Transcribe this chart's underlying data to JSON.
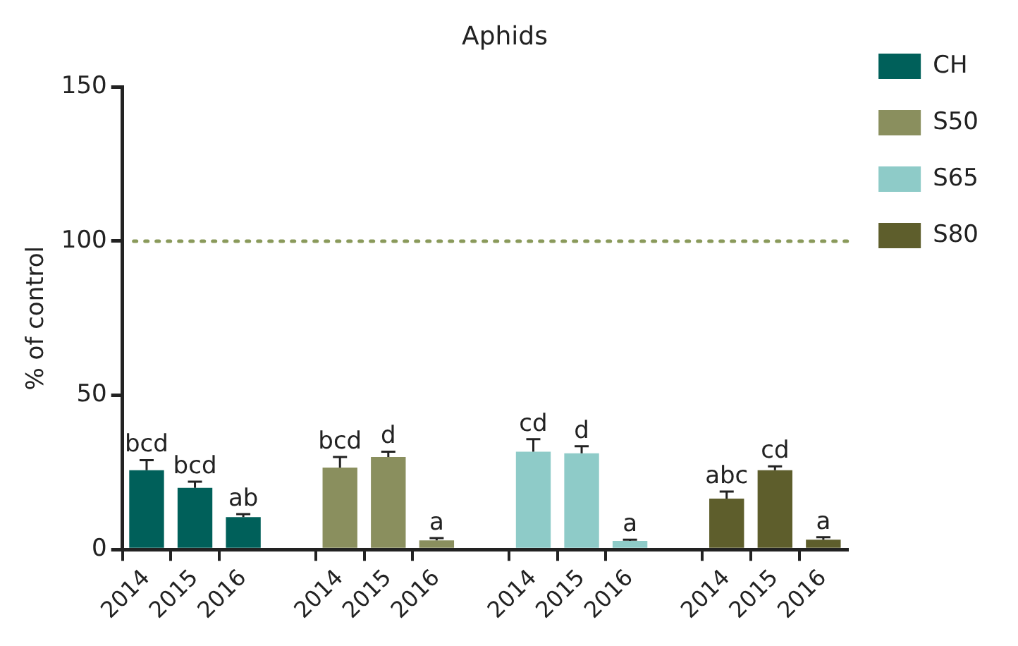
{
  "chart_data": {
    "type": "bar",
    "title": "Aphids",
    "ylabel": "% of control",
    "categories": [
      "2014",
      "2015",
      "2016",
      null,
      "2014",
      "2015",
      "2016",
      null,
      "2014",
      "2015",
      "2016",
      null,
      "2014",
      "2015",
      "2016"
    ],
    "series": [
      {
        "name": "CH",
        "color": "#00605a",
        "values": [
          25.7,
          20,
          10.5,
          null,
          null,
          null,
          null,
          null,
          null,
          null,
          null,
          null,
          null,
          null,
          null
        ],
        "errors": [
          [
            25.7,
            29
          ],
          [
            20,
            22
          ],
          [
            10.5,
            11.5
          ],
          null,
          null,
          null,
          null,
          null,
          null,
          null,
          null,
          null,
          null,
          null,
          null
        ],
        "value_labels": [
          "bcd",
          "bcd",
          "ab",
          null,
          null,
          null,
          null,
          null,
          null,
          null,
          null,
          null,
          null,
          null,
          null
        ]
      },
      {
        "name": "S50",
        "color": "#8a8f5e",
        "values": [
          null,
          null,
          null,
          null,
          26.6,
          30,
          3,
          null,
          null,
          null,
          null,
          null,
          null,
          null,
          null
        ],
        "errors": [
          null,
          null,
          null,
          null,
          [
            26.6,
            30
          ],
          [
            30,
            31.7
          ],
          [
            3,
            3.7
          ],
          null,
          null,
          null,
          null,
          null,
          null,
          null,
          null
        ],
        "value_labels": [
          null,
          null,
          null,
          null,
          "bcd",
          "d",
          "a",
          null,
          null,
          null,
          null,
          null,
          null,
          null,
          null
        ]
      },
      {
        "name": "S65",
        "color": "#8ecbc8",
        "values": [
          null,
          null,
          null,
          null,
          null,
          null,
          null,
          null,
          31.7,
          31.2,
          2.8,
          null,
          null,
          null,
          null
        ],
        "errors": [
          null,
          null,
          null,
          null,
          null,
          null,
          null,
          null,
          [
            31.7,
            35.8
          ],
          [
            31.2,
            33.5
          ],
          [
            2.8,
            3.2
          ],
          null,
          null,
          null,
          null
        ],
        "value_labels": [
          null,
          null,
          null,
          null,
          null,
          null,
          null,
          null,
          "cd",
          "d",
          "a",
          null,
          null,
          null,
          null
        ]
      },
      {
        "name": "S80",
        "color": "#5e5e2c",
        "values": [
          null,
          null,
          null,
          null,
          null,
          null,
          null,
          null,
          null,
          null,
          null,
          null,
          16.5,
          25.7,
          3.2
        ],
        "errors": [
          null,
          null,
          null,
          null,
          null,
          null,
          null,
          null,
          null,
          null,
          null,
          null,
          [
            16.5,
            18.8
          ],
          [
            25.7,
            27
          ],
          [
            3.2,
            4
          ]
        ],
        "value_labels": [
          null,
          null,
          null,
          null,
          null,
          null,
          null,
          null,
          null,
          null,
          null,
          null,
          "abc",
          "cd",
          "a"
        ]
      }
    ],
    "ylim": [
      0,
      150
    ],
    "yticks": [
      0,
      50,
      100,
      150
    ],
    "ref_lines": [
      {
        "axis": "y",
        "value": 100,
        "color": "#8a9a5b",
        "line_style": "dotted"
      }
    ],
    "grid": false,
    "legend": "top right"
  }
}
